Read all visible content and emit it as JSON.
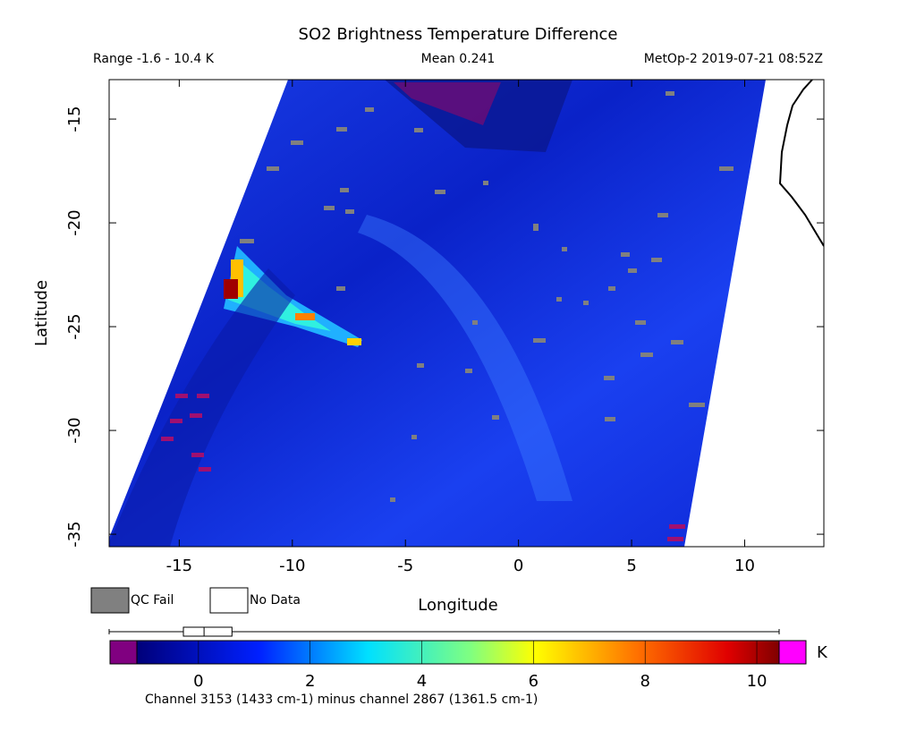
{
  "chart_data": {
    "type": "map",
    "title": "SO2 Brightness Temperature Difference",
    "range_text": "Range -1.6 - 10.4 K",
    "mean_text": "Mean 0.241",
    "source_text": "MetOp-2 2019-07-21 08:52Z",
    "xlabel": "Longitude",
    "ylabel": "Latitude",
    "xlim": [
      -18.1,
      13.5
    ],
    "xticks": [
      -15,
      -10,
      -5,
      0,
      5,
      10
    ],
    "ylim": [
      -35.6,
      -13.1
    ],
    "yticks": [
      -15,
      -20,
      -25,
      -30,
      -35
    ],
    "legend": [
      {
        "label": "QC Fail",
        "color": "#808080"
      },
      {
        "label": "No Data",
        "color": "#ffffff"
      }
    ],
    "colorbar": {
      "lim": [
        -1.6,
        10.4
      ],
      "ticks": [
        0,
        2,
        4,
        6,
        8,
        10
      ],
      "unit": "K",
      "under_color": "#800080",
      "over_color": "#ff00ff",
      "stats": {
        "min": -1.6,
        "q1": -0.27,
        "median": 0.1,
        "q3": 0.6,
        "max": 10.4
      }
    },
    "footnote": "Channel 3153 (1433 cm-1) minus channel 2867 (1361.5 cm-1)"
  }
}
